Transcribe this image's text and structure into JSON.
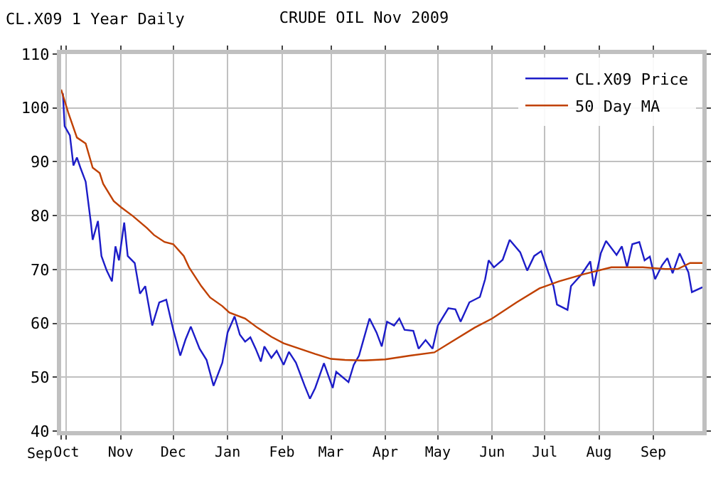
{
  "chart_data": {
    "type": "line",
    "title": "CRUDE OIL Nov 2009",
    "annotations": [
      "CL.X09 1 Year Daily",
      "Sep"
    ],
    "series": [
      {
        "name": "CL.X09 Price",
        "color": "#1c1cc8",
        "x": [
          "2008-09-29",
          "2008-09-30",
          "2008-10-03",
          "2008-10-05",
          "2008-10-07",
          "2008-10-09",
          "2008-10-12",
          "2008-10-15",
          "2008-10-16",
          "2008-10-19",
          "2008-10-21",
          "2008-10-24",
          "2008-10-27",
          "2008-10-29",
          "2008-10-31",
          "2008-11-03",
          "2008-11-05",
          "2008-11-09",
          "2008-11-12",
          "2008-11-15",
          "2008-11-19",
          "2008-11-23",
          "2008-11-27",
          "2008-12-01",
          "2008-12-05",
          "2008-12-08",
          "2008-12-11",
          "2008-12-16",
          "2008-12-20",
          "2008-12-24",
          "2008-12-29",
          "2009-01-01",
          "2009-01-05",
          "2009-01-08",
          "2009-01-11",
          "2009-01-14",
          "2009-01-17",
          "2009-01-20",
          "2009-01-22",
          "2009-01-26",
          "2009-01-29",
          "2009-02-02",
          "2009-02-05",
          "2009-02-09",
          "2009-02-14",
          "2009-02-17",
          "2009-02-20",
          "2009-02-25",
          "2009-03-02",
          "2009-03-04",
          "2009-03-11",
          "2009-03-14",
          "2009-03-17",
          "2009-03-23",
          "2009-03-27",
          "2009-03-30",
          "2009-04-02",
          "2009-04-06",
          "2009-04-09",
          "2009-04-12",
          "2009-04-17",
          "2009-04-20",
          "2009-04-24",
          "2009-04-28",
          "2009-05-01",
          "2009-05-07",
          "2009-05-11",
          "2009-05-14",
          "2009-05-19",
          "2009-05-25",
          "2009-05-28",
          "2009-05-30",
          "2009-06-02",
          "2009-06-07",
          "2009-06-11",
          "2009-06-17",
          "2009-06-21",
          "2009-06-25",
          "2009-06-29",
          "2009-07-03",
          "2009-07-06",
          "2009-07-08",
          "2009-07-14",
          "2009-07-16",
          "2009-07-22",
          "2009-07-27",
          "2009-07-29",
          "2009-08-02",
          "2009-08-05",
          "2009-08-11",
          "2009-08-14",
          "2009-08-17",
          "2009-08-20",
          "2009-08-24",
          "2009-08-27",
          "2009-08-30",
          "2009-09-02",
          "2009-09-06",
          "2009-09-09",
          "2009-09-12",
          "2009-09-16",
          "2009-09-21",
          "2009-09-23",
          "2009-09-29"
        ],
        "values": [
          102.7,
          96.6,
          94.9,
          89.3,
          90.8,
          88.9,
          86.3,
          78.6,
          75.5,
          79.0,
          72.5,
          69.8,
          67.8,
          74.3,
          71.7,
          78.7,
          72.5,
          71.2,
          65.5,
          66.9,
          59.6,
          63.9,
          64.4,
          58.8,
          54.0,
          57.0,
          59.4,
          55.3,
          53.2,
          48.4,
          52.7,
          58.3,
          61.3,
          57.9,
          56.6,
          57.4,
          55.3,
          52.9,
          55.7,
          53.6,
          54.9,
          52.3,
          54.7,
          52.7,
          48.4,
          46.0,
          48.0,
          52.6,
          48.0,
          51.0,
          49.1,
          52.3,
          54.0,
          60.9,
          58.3,
          55.7,
          60.3,
          59.6,
          60.9,
          58.8,
          58.6,
          55.3,
          56.9,
          55.3,
          59.6,
          62.8,
          62.6,
          60.3,
          63.9,
          64.9,
          68.2,
          71.7,
          70.4,
          71.8,
          75.5,
          73.2,
          69.8,
          72.5,
          73.4,
          69.5,
          66.9,
          63.5,
          62.5,
          66.9,
          69.1,
          71.5,
          66.9,
          73.0,
          75.3,
          72.7,
          74.3,
          70.4,
          74.7,
          75.1,
          71.7,
          72.4,
          68.2,
          70.8,
          72.1,
          69.3,
          73.0,
          69.5,
          65.8,
          66.7
        ]
      },
      {
        "name": "50 Day MA",
        "color": "#c04000",
        "x": [
          "2008-09-28",
          "2008-10-02",
          "2008-10-07",
          "2008-10-12",
          "2008-10-16",
          "2008-10-20",
          "2008-10-22",
          "2008-10-28",
          "2008-11-01",
          "2008-11-08",
          "2008-11-16",
          "2008-11-20",
          "2008-11-26",
          "2008-12-01",
          "2008-12-07",
          "2008-12-10",
          "2008-12-17",
          "2008-12-22",
          "2008-12-29",
          "2009-01-02",
          "2009-01-11",
          "2009-01-18",
          "2009-01-26",
          "2009-02-02",
          "2009-02-11",
          "2009-02-20",
          "2009-03-01",
          "2009-03-09",
          "2009-03-20",
          "2009-04-01",
          "2009-04-15",
          "2009-04-29",
          "2009-05-09",
          "2009-05-22",
          "2009-06-01",
          "2009-06-15",
          "2009-06-28",
          "2009-07-09",
          "2009-07-23",
          "2009-08-08",
          "2009-08-26",
          "2009-09-08",
          "2009-09-15",
          "2009-09-22",
          "2009-09-29"
        ],
        "values": [
          103.4,
          99.2,
          94.5,
          93.4,
          88.9,
          87.9,
          85.9,
          82.7,
          81.6,
          79.9,
          77.7,
          76.4,
          75.1,
          74.7,
          72.5,
          70.4,
          66.9,
          64.8,
          63.2,
          62.0,
          60.9,
          59.2,
          57.5,
          56.3,
          55.3,
          54.3,
          53.4,
          53.2,
          53.1,
          53.3,
          54.0,
          54.6,
          56.6,
          59.2,
          60.9,
          63.9,
          66.5,
          67.8,
          69.1,
          70.4,
          70.4,
          70.1,
          70.1,
          71.2,
          71.2
        ]
      }
    ],
    "xlim": [
      "2008-09-28",
      "2009-09-29"
    ],
    "xticks": [
      {
        "value": "2008-09-28",
        "label": null
      },
      {
        "value": "2008-10-01",
        "label": "Oct"
      },
      {
        "value": "2008-11-01",
        "label": "Nov"
      },
      {
        "value": "2008-12-01",
        "label": "Dec"
      },
      {
        "value": "2009-01-01",
        "label": "Jan"
      },
      {
        "value": "2009-02-01",
        "label": "Feb"
      },
      {
        "value": "2009-03-01",
        "label": "Mar"
      },
      {
        "value": "2009-04-01",
        "label": "Apr"
      },
      {
        "value": "2009-05-01",
        "label": "May"
      },
      {
        "value": "2009-06-01",
        "label": "Jun"
      },
      {
        "value": "2009-07-01",
        "label": "Jul"
      },
      {
        "value": "2009-08-01",
        "label": "Aug"
      },
      {
        "value": "2009-09-01",
        "label": "Sep"
      }
    ],
    "ylim": [
      40,
      110
    ],
    "yticks": [
      40,
      50,
      60,
      70,
      80,
      90,
      100,
      110
    ],
    "grid": true,
    "legend": "top right",
    "marker": "none",
    "line_style": "solid"
  }
}
